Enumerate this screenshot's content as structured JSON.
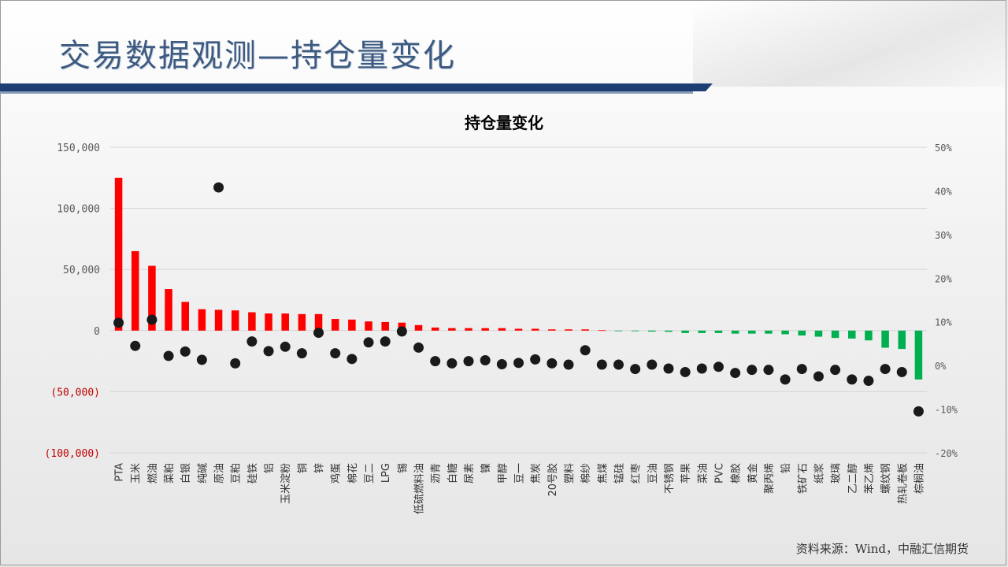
{
  "page": {
    "title": "交易数据观测—持仓量变化",
    "source": "资料来源：Wind，中融汇信期货"
  },
  "colors": {
    "positive_bar": "#ff0000",
    "negative_bar": "#00b050",
    "marker": "#1a1a1a",
    "title_blue": "#3d5a80",
    "title_bar": "#1d3e73"
  },
  "chart_data": {
    "type": "bar",
    "title": "持仓量变化",
    "xlabel": "",
    "ylabel": "",
    "ylim": [
      -100000,
      150000
    ],
    "y_ticks": [
      {
        "value": 150000,
        "label": "150,000"
      },
      {
        "value": 100000,
        "label": "100,000"
      },
      {
        "value": 50000,
        "label": "50,000"
      },
      {
        "value": 0,
        "label": "0"
      },
      {
        "value": -50000,
        "label": "(50,000)"
      },
      {
        "value": -100000,
        "label": "(100,000)"
      }
    ],
    "y2lim": [
      -20,
      50
    ],
    "y2_ticks": [
      "50%",
      "40%",
      "30%",
      "20%",
      "10%",
      "0%",
      "-10%",
      "-20%"
    ],
    "grid": true,
    "categories": [
      "PTA",
      "玉米",
      "燃油",
      "菜粕",
      "白银",
      "纯碱",
      "原油",
      "豆粕",
      "硅铁",
      "铝",
      "玉米淀粉",
      "铜",
      "锌",
      "鸡蛋",
      "棉花",
      "豆二",
      "LPG",
      "锡",
      "低硫燃料油",
      "沥青",
      "白糖",
      "尿素",
      "镍",
      "甲醇",
      "豆一",
      "焦炭",
      "20号胶",
      "塑料",
      "棉纱",
      "焦煤",
      "锰硅",
      "红枣",
      "豆油",
      "不锈钢",
      "苹果",
      "菜油",
      "PVC",
      "橡胶",
      "黄金",
      "聚丙烯",
      "铅",
      "铁矿石",
      "纸浆",
      "玻璃",
      "乙二醇",
      "苯乙烯",
      "螺纹钢",
      "热轧卷板",
      "棕榈油"
    ],
    "series": [
      {
        "values": [
          125000,
          65000,
          53000,
          34000,
          23500,
          17500,
          17000,
          16500,
          15000,
          14000,
          14000,
          13500,
          13500,
          9500,
          9000,
          7500,
          7000,
          6500,
          4500,
          2500,
          2000,
          2000,
          2000,
          2000,
          1500,
          1500,
          1000,
          1000,
          1000,
          300,
          -300,
          -500,
          -800,
          -1000,
          -2000,
          -2000,
          -2000,
          -2500,
          -2500,
          -2500,
          -3000,
          -4000,
          -5000,
          -6000,
          -6500,
          -8000,
          -14000,
          -15000,
          -40000
        ]
      },
      {
        "axis": "secondary",
        "values": [
          9.8,
          4.5,
          10.5,
          2.2,
          3.2,
          1.3,
          40.8,
          0.5,
          5.5,
          3.3,
          4.3,
          2.8,
          7.5,
          2.8,
          1.5,
          5.3,
          5.5,
          7.8,
          4.1,
          1.0,
          0.5,
          1.0,
          1.2,
          0.3,
          0.6,
          1.4,
          0.5,
          0.2,
          3.5,
          0.2,
          0.2,
          -0.8,
          0.2,
          -0.7,
          -1.5,
          -0.7,
          -0.3,
          -1.7,
          -1.0,
          -1.0,
          -3.2,
          -0.8,
          -2.5,
          -1.0,
          -3.2,
          -3.5,
          -0.8,
          -1.5,
          -10.5
        ]
      }
    ]
  }
}
